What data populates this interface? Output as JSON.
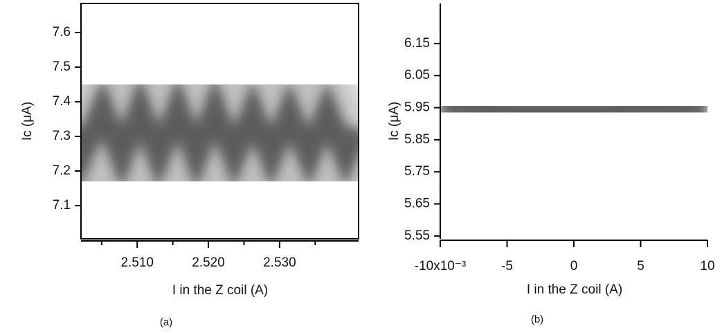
{
  "chart_data": [
    {
      "type": "density",
      "caption": "(a)",
      "x_label": "I in the Z coil (A)",
      "y_label": "Ic (μA)",
      "x": [
        2.5021,
        2.5025,
        2.5051,
        2.5078,
        2.5104,
        2.513,
        2.5157,
        2.5183,
        2.5209,
        2.5236,
        2.5262,
        2.5288,
        2.5314,
        2.5341,
        2.5367,
        2.5393,
        2.5411
      ],
      "values": [
        7.33,
        7.26,
        7.38,
        7.24,
        7.38,
        7.24,
        7.38,
        7.24,
        7.38,
        7.24,
        7.37,
        7.24,
        7.37,
        7.24,
        7.37,
        7.24,
        7.32
      ],
      "color": "#1a1a1a",
      "xlim": [
        2.5021,
        2.5411
      ],
      "ylim": [
        7.004,
        7.684
      ],
      "xticks": [
        {
          "value": 2.51,
          "label": "2.510"
        },
        {
          "value": 2.52,
          "label": "2.520"
        },
        {
          "value": 2.53,
          "label": "2.530"
        }
      ],
      "xminorticks": [
        2.505,
        2.515,
        2.525,
        2.535
      ],
      "yticks": [
        7.1,
        7.2,
        7.3,
        7.4,
        7.5,
        7.6
      ],
      "frame": true
    },
    {
      "type": "density",
      "caption": "(b)",
      "x_label": "I in the Z coil (A)",
      "y_label": "Ic (μA)",
      "x": [
        -0.01,
        -0.0075,
        -0.005,
        -0.0025,
        0,
        0.0025,
        0.005,
        0.0075,
        0.01
      ],
      "values": [
        5.95,
        5.95,
        5.94,
        5.94,
        5.94,
        5.94,
        5.95,
        5.95,
        5.94
      ],
      "color": "#1a1a1a",
      "xlim": [
        -0.01,
        0.01
      ],
      "ylim": [
        5.541,
        6.275
      ],
      "xticks": [
        {
          "value": -0.01,
          "label": "-10x10⁻³"
        },
        {
          "value": -0.005,
          "label": "-5"
        },
        0,
        {
          "value": 0.005,
          "label": "5"
        },
        {
          "value": 0.01,
          "label": "10"
        }
      ],
      "xminorticks": [],
      "yticks": [
        5.55,
        5.65,
        5.75,
        5.85,
        5.95,
        6.05,
        6.15
      ],
      "frame": false
    }
  ]
}
